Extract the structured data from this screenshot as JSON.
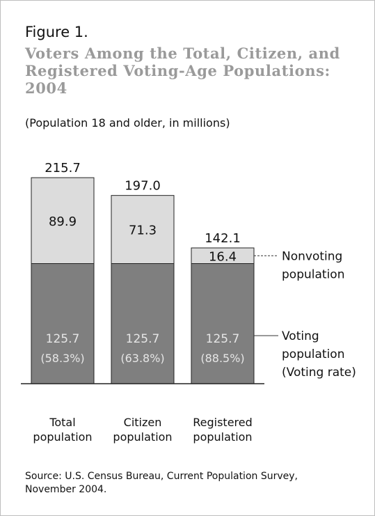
{
  "figure_label": "Figure 1.",
  "title": "Voters Among the Total, Citizen, and Registered Voting-Age Populations: 2004",
  "subtitle": "(Population 18 and older, in millions)",
  "source": "Source: U.S. Census Bureau, Current Population Survey, November 2004.",
  "colors": {
    "voting": "#7f7f7f",
    "nonvoting": "#dcdcdc",
    "outline": "#222222"
  },
  "chart_data": {
    "type": "bar",
    "stacked": true,
    "categories": [
      [
        "Total",
        "population"
      ],
      [
        "Citizen",
        "population"
      ],
      [
        "Registered",
        "population"
      ]
    ],
    "totals": [
      215.7,
      197.0,
      142.1
    ],
    "series": [
      {
        "name": [
          "Voting",
          "population",
          "(Voting rate)"
        ],
        "values": [
          125.7,
          125.7,
          125.7
        ],
        "labels": [
          "125.7",
          "125.7",
          "125.7"
        ],
        "rate_labels": [
          "(58.3%)",
          "(63.8%)",
          "(88.5%)"
        ]
      },
      {
        "name": [
          "Nonvoting",
          "population"
        ],
        "values": [
          89.9,
          71.3,
          16.4
        ],
        "labels": [
          "89.9",
          "71.3",
          "16.4"
        ]
      }
    ],
    "total_labels": [
      "215.7",
      "197.0",
      "142.1"
    ],
    "ylim": [
      0,
      215.7
    ],
    "grid": false,
    "legend": "right"
  }
}
